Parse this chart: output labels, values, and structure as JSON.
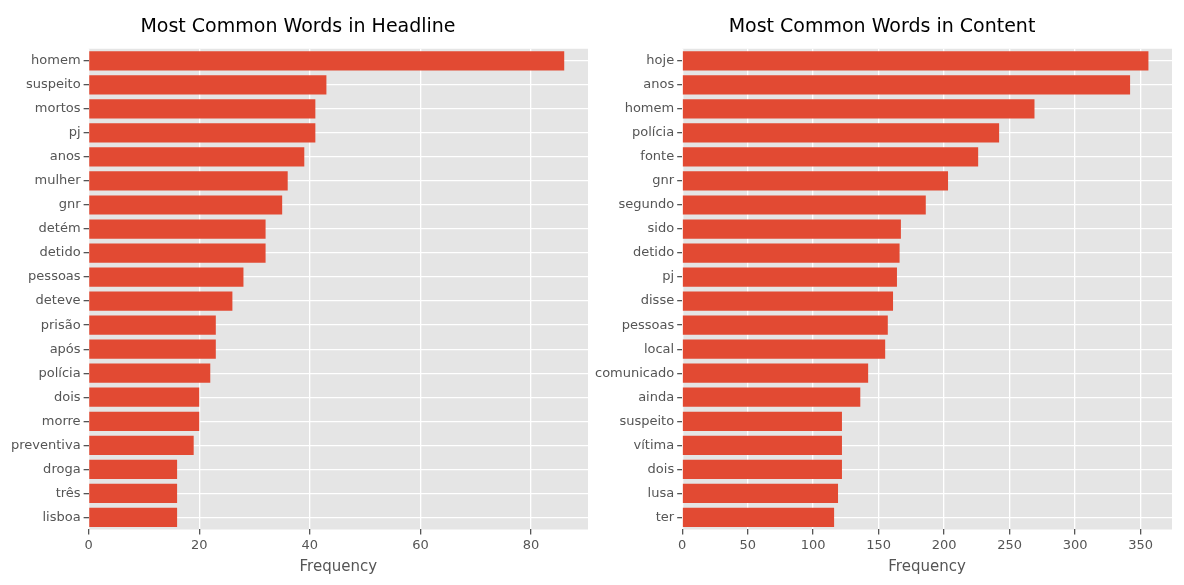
{
  "chart_data": [
    {
      "type": "bar",
      "orientation": "horizontal",
      "title": "Most Common Words in Headline",
      "xlabel": "Frequency",
      "categories": [
        "homem",
        "suspeito",
        "mortos",
        "pj",
        "anos",
        "mulher",
        "gnr",
        "detém",
        "detido",
        "pessoas",
        "deteve",
        "prisão",
        "após",
        "polícia",
        "dois",
        "morre",
        "preventiva",
        "droga",
        "três",
        "lisboa"
      ],
      "values": [
        86,
        43,
        41,
        41,
        39,
        36,
        35,
        32,
        32,
        28,
        26,
        23,
        23,
        22,
        20,
        20,
        19,
        16,
        16,
        16
      ],
      "color": "#e24a33",
      "xlim": [
        0,
        90.3
      ],
      "xticks": [
        0,
        20,
        40,
        60,
        80
      ],
      "grid": true,
      "legend": false
    },
    {
      "type": "bar",
      "orientation": "horizontal",
      "title": "Most Common Words in Content",
      "xlabel": "Frequency",
      "categories": [
        "hoje",
        "anos",
        "homem",
        "polícia",
        "fonte",
        "gnr",
        "segundo",
        "sido",
        "detido",
        "pj",
        "disse",
        "pessoas",
        "local",
        "comunicado",
        "ainda",
        "suspeito",
        "vítima",
        "dois",
        "lusa",
        "ter"
      ],
      "values": [
        356,
        342,
        269,
        242,
        226,
        203,
        186,
        167,
        166,
        164,
        161,
        157,
        155,
        142,
        136,
        122,
        122,
        122,
        119,
        116
      ],
      "color": "#e24a33",
      "xlim": [
        0,
        374
      ],
      "xticks": [
        0,
        50,
        100,
        150,
        200,
        250,
        300,
        350
      ],
      "grid": true,
      "legend": false
    }
  ]
}
